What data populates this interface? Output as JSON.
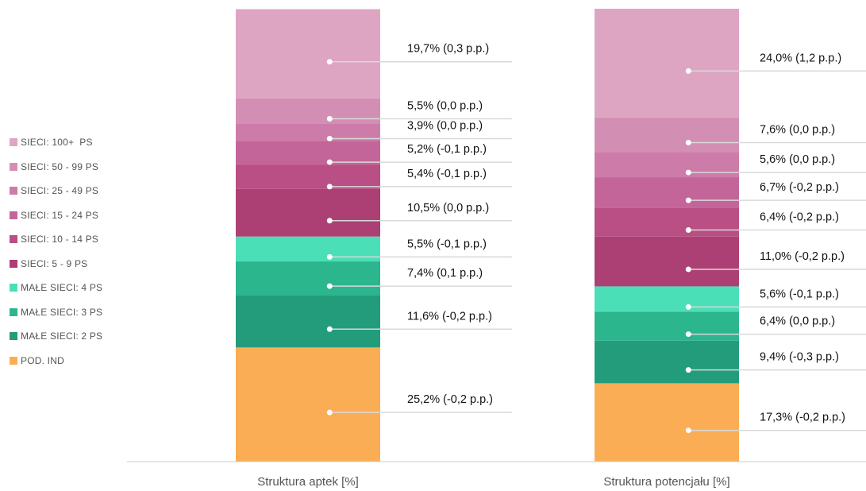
{
  "chart_data": {
    "type": "bar",
    "stacked": true,
    "categories": [
      "Struktura aptek [%]",
      "Struktura potencjału [%]"
    ],
    "series": [
      {
        "name": "POD. IND",
        "color": "#fbad55",
        "values": [
          25.2,
          17.3
        ],
        "labels": [
          "25,2% (-0,2 p.p.)",
          "17,3% (-0,2 p.p.)"
        ]
      },
      {
        "name": "MAŁE SIECI: 2 PS",
        "color": "#239c7c",
        "values": [
          11.6,
          9.4
        ],
        "labels": [
          "11,6% (-0,2 p.p.)",
          "9,4% (-0,3 p.p.)"
        ]
      },
      {
        "name": "MAŁE SIECI: 3 PS",
        "color": "#2bb68d",
        "values": [
          7.4,
          6.4
        ],
        "labels": [
          "7,4% (0,1 p.p.)",
          "6,4% (0,0 p.p.)"
        ]
      },
      {
        "name": "MAŁE SIECI: 4 PS",
        "color": "#4bdfb7",
        "values": [
          5.5,
          5.6
        ],
        "labels": [
          "5,5% (-0,1 p.p.)",
          "5,6% (-0,1 p.p.)"
        ]
      },
      {
        "name": "SIECI: 5 - 9 PS",
        "color": "#ac4074",
        "values": [
          10.5,
          11.0
        ],
        "labels": [
          "10,5% (0,0 p.p.)",
          "11,0% (-0,2 p.p.)"
        ]
      },
      {
        "name": "SIECI: 10 - 14 PS",
        "color": "#b94f84",
        "values": [
          5.4,
          6.4
        ],
        "labels": [
          "5,4% (-0,1 p.p.)",
          "6,4% (-0,2 p.p.)"
        ]
      },
      {
        "name": "SIECI: 15 - 24 PS",
        "color": "#c4659a",
        "values": [
          5.2,
          6.7
        ],
        "labels": [
          "5,2% (-0,1 p.p.)",
          "6,7% (-0,2 p.p.)"
        ]
      },
      {
        "name": "SIECI: 25 - 49 PS",
        "color": "#cd7ca9",
        "values": [
          3.9,
          5.6
        ],
        "labels": [
          "3,9% (0,0 p.p.)",
          "5,6% (0,0 p.p.)"
        ]
      },
      {
        "name": "SIECI: 50 - 99 PS",
        "color": "#d38fb3",
        "values": [
          5.5,
          7.6
        ],
        "labels": [
          "5,5% (0,0 p.p.)",
          "7,6% (0,0 p.p.)"
        ]
      },
      {
        "name": "SIECI: 100+  PS",
        "color": "#dea5c3",
        "values": [
          19.7,
          24.0
        ],
        "labels": [
          "19,7% (0,3 p.p.)",
          "24,0% (1,2 p.p.)"
        ]
      }
    ],
    "legend": {
      "position": "left",
      "items": [
        {
          "label": "SIECI: 100+  PS",
          "color": "#dea5c3"
        },
        {
          "label": "SIECI: 50 - 99 PS",
          "color": "#d38fb3"
        },
        {
          "label": "SIECI: 25 - 49 PS",
          "color": "#cd7ca9"
        },
        {
          "label": "SIECI: 15 - 24 PS",
          "color": "#c4659a"
        },
        {
          "label": "SIECI: 10 - 14 PS",
          "color": "#b94f84"
        },
        {
          "label": "SIECI: 5 - 9 PS",
          "color": "#ac4074"
        },
        {
          "label": "MAŁE SIECI: 4 PS",
          "color": "#4bdfb7"
        },
        {
          "label": "MAŁE SIECI: 3 PS",
          "color": "#2bb68d"
        },
        {
          "label": "MAŁE SIECI: 2 PS",
          "color": "#239c7c"
        },
        {
          "label": "POD. IND",
          "color": "#fbad55"
        }
      ]
    },
    "ylim": [
      0,
      100
    ],
    "grid": false
  }
}
